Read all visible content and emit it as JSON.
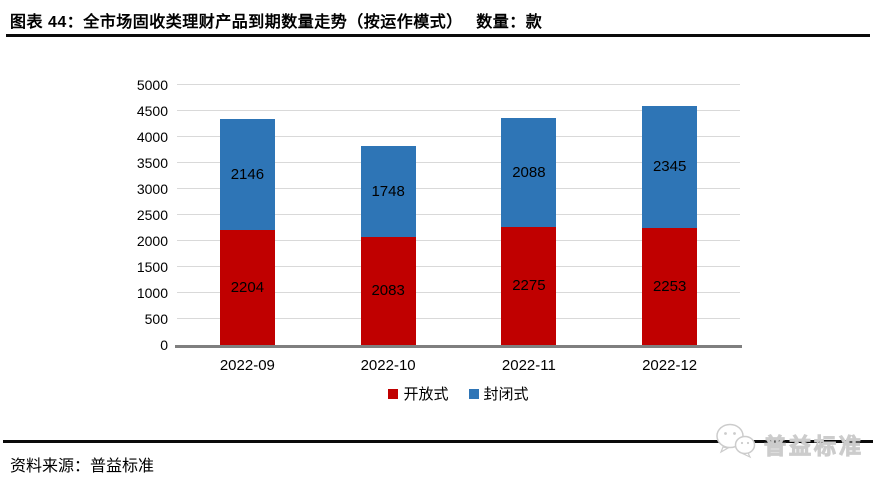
{
  "header": {
    "title": "图表 44：全市场固收类理财产品到期数量走势（按运作模式）　 数量：款"
  },
  "chart_data": {
    "type": "bar",
    "stacked": true,
    "categories": [
      "2022-09",
      "2022-10",
      "2022-11",
      "2022-12"
    ],
    "series": [
      {
        "name": "开放式",
        "color": "#c00000",
        "values": [
          2204,
          2083,
          2275,
          2253
        ]
      },
      {
        "name": "封闭式",
        "color": "#2e75b6",
        "values": [
          2146,
          1748,
          2088,
          2345
        ]
      }
    ],
    "totals": [
      4350,
      3831,
      4363,
      4598
    ],
    "ylim": [
      0,
      5000
    ],
    "ytick_step": 500,
    "yticks": [
      "0",
      "500",
      "1000",
      "1500",
      "2000",
      "2500",
      "3000",
      "3500",
      "4000",
      "4500",
      "5000"
    ],
    "grid": "horizontal",
    "legend_position": "bottom",
    "gridline_color": "#d9d9d9",
    "axis_line_color": "#7f7f7f"
  },
  "footer": {
    "source_label": "资料来源：普益标准",
    "logo_text": "普益标准"
  }
}
